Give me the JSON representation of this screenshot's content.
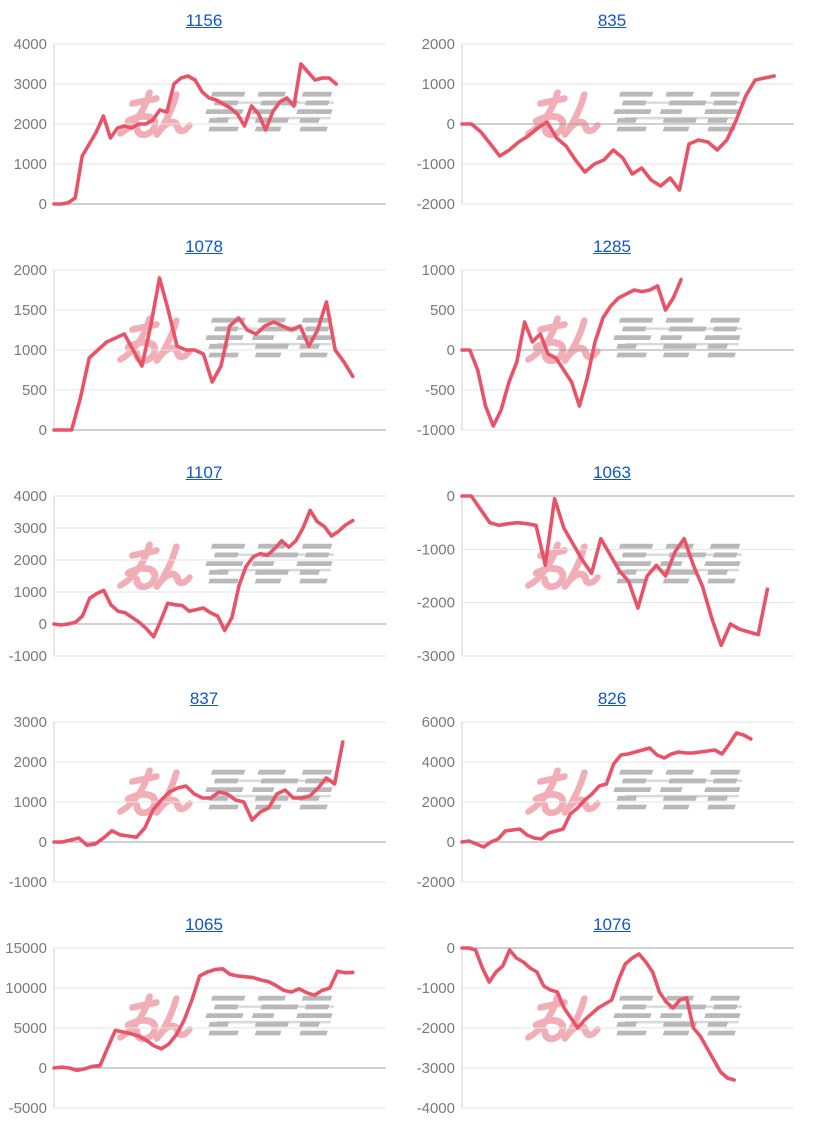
{
  "page": {
    "background": "#ffffff"
  },
  "style": {
    "line_color": "#e85368",
    "grid_color": "#e5e5e5",
    "zero_line_color": "#a0a0a0",
    "axis_line_color": "#d2d2d2",
    "tick_label_color": "#7a7a7a",
    "title_color": "#1155cc"
  },
  "watermark": {
    "text_pink": "みん",
    "text_gray": "レポ",
    "pink": "#f0a0aa",
    "gray": "#a8a8a8"
  },
  "chart_data": [
    {
      "type": "line",
      "title": "1156",
      "xlabel": "",
      "ylabel": "",
      "ylim": [
        0,
        4000
      ],
      "yticks": [
        0,
        1000,
        2000,
        3000,
        4000
      ],
      "grid": true,
      "legend": "none",
      "end_fraction": 0.85,
      "values": [
        0,
        0,
        30,
        150,
        1200,
        1500,
        1800,
        2200,
        1650,
        1900,
        1950,
        1900,
        2000,
        2000,
        2100,
        2350,
        2300,
        3000,
        3150,
        3200,
        3100,
        2800,
        2650,
        2600,
        2500,
        2400,
        2250,
        1950,
        2450,
        2250,
        1850,
        2300,
        2550,
        2650,
        2450,
        3500,
        3300,
        3100,
        3150,
        3150,
        3000
      ]
    },
    {
      "type": "line",
      "title": "835",
      "xlabel": "",
      "ylabel": "",
      "ylim": [
        -2000,
        2000
      ],
      "yticks": [
        -2000,
        -1000,
        0,
        1000,
        2000
      ],
      "grid": true,
      "legend": "none",
      "end_fraction": 0.94,
      "values": [
        0,
        0,
        -200,
        -500,
        -800,
        -650,
        -450,
        -300,
        -100,
        50,
        -350,
        -550,
        -900,
        -1200,
        -1000,
        -900,
        -650,
        -850,
        -1250,
        -1100,
        -1400,
        -1550,
        -1350,
        -1650,
        -500,
        -400,
        -450,
        -650,
        -400,
        100,
        700,
        1100,
        1150,
        1200
      ]
    },
    {
      "type": "line",
      "title": "1078",
      "xlabel": "",
      "ylabel": "",
      "ylim": [
        0,
        2000
      ],
      "yticks": [
        0,
        500,
        1000,
        1500,
        2000
      ],
      "grid": true,
      "legend": "none",
      "end_fraction": 0.9,
      "values": [
        0,
        0,
        0,
        400,
        900,
        1000,
        1100,
        1150,
        1200,
        1000,
        800,
        1300,
        1900,
        1500,
        1050,
        1000,
        1000,
        950,
        600,
        800,
        1300,
        1400,
        1250,
        1200,
        1300,
        1350,
        1300,
        1250,
        1300,
        1050,
        1250,
        1600,
        1000,
        850,
        670
      ]
    },
    {
      "type": "line",
      "title": "1285",
      "xlabel": "",
      "ylabel": "",
      "ylim": [
        -1000,
        1000
      ],
      "yticks": [
        -1000,
        -500,
        0,
        500,
        1000
      ],
      "grid": true,
      "legend": "none",
      "end_fraction": 0.66,
      "values": [
        0,
        0,
        -250,
        -700,
        -950,
        -750,
        -400,
        -150,
        350,
        100,
        200,
        -50,
        -100,
        -250,
        -400,
        -700,
        -350,
        100,
        400,
        550,
        650,
        700,
        750,
        730,
        750,
        800,
        500,
        650,
        880
      ]
    },
    {
      "type": "line",
      "title": "1107",
      "xlabel": "",
      "ylabel": "",
      "ylim": [
        -1000,
        4000
      ],
      "yticks": [
        -1000,
        0,
        1000,
        2000,
        3000,
        4000
      ],
      "grid": true,
      "legend": "none",
      "end_fraction": 0.9,
      "values": [
        0,
        -30,
        0,
        50,
        250,
        800,
        950,
        1050,
        600,
        400,
        350,
        200,
        50,
        -150,
        -400,
        100,
        650,
        600,
        580,
        400,
        450,
        500,
        350,
        250,
        -200,
        200,
        1200,
        1800,
        2100,
        2200,
        2150,
        2350,
        2600,
        2400,
        2600,
        3000,
        3550,
        3200,
        3050,
        2750,
        2900,
        3100,
        3230
      ]
    },
    {
      "type": "line",
      "title": "1063",
      "xlabel": "",
      "ylabel": "",
      "ylim": [
        -3000,
        0
      ],
      "yticks": [
        -3000,
        -2000,
        -1000,
        0
      ],
      "grid": true,
      "legend": "none",
      "end_fraction": 0.92,
      "values": [
        0,
        0,
        -250,
        -500,
        -550,
        -520,
        -500,
        -520,
        -550,
        -1300,
        -50,
        -600,
        -900,
        -1200,
        -1450,
        -800,
        -1100,
        -1400,
        -1600,
        -2100,
        -1500,
        -1300,
        -1500,
        -1050,
        -800,
        -1300,
        -1700,
        -2300,
        -2800,
        -2400,
        -2500,
        -2550,
        -2600,
        -1750
      ]
    },
    {
      "type": "line",
      "title": "837",
      "xlabel": "",
      "ylabel": "",
      "ylim": [
        -1000,
        3000
      ],
      "yticks": [
        -1000,
        0,
        1000,
        2000,
        3000
      ],
      "grid": true,
      "legend": "none",
      "end_fraction": 0.87,
      "values": [
        0,
        0,
        50,
        100,
        -80,
        -50,
        100,
        280,
        180,
        150,
        120,
        350,
        800,
        1050,
        1250,
        1350,
        1400,
        1200,
        1100,
        1100,
        1250,
        1200,
        1050,
        1000,
        550,
        750,
        850,
        1200,
        1300,
        1100,
        1100,
        1150,
        1350,
        1600,
        1450,
        2500
      ]
    },
    {
      "type": "line",
      "title": "826",
      "xlabel": "",
      "ylabel": "",
      "ylim": [
        -2000,
        6000
      ],
      "yticks": [
        -2000,
        0,
        2000,
        4000,
        6000
      ],
      "grid": true,
      "legend": "none",
      "end_fraction": 0.87,
      "values": [
        0,
        50,
        -100,
        -250,
        0,
        150,
        550,
        600,
        650,
        350,
        200,
        150,
        450,
        550,
        650,
        1400,
        1700,
        2100,
        2400,
        2800,
        2900,
        3900,
        4350,
        4400,
        4500,
        4600,
        4700,
        4350,
        4200,
        4400,
        4500,
        4450,
        4450,
        4500,
        4550,
        4600,
        4400,
        4900,
        5450,
        5350,
        5150
      ]
    },
    {
      "type": "line",
      "title": "1065",
      "xlabel": "",
      "ylabel": "",
      "ylim": [
        -5000,
        15000
      ],
      "yticks": [
        -5000,
        0,
        5000,
        10000,
        15000
      ],
      "grid": true,
      "legend": "none",
      "end_fraction": 0.9,
      "values": [
        0,
        100,
        0,
        -300,
        -100,
        200,
        300,
        2500,
        4700,
        4500,
        4300,
        4000,
        3500,
        2800,
        2400,
        3000,
        4200,
        6000,
        8500,
        11500,
        12000,
        12300,
        12400,
        11700,
        11500,
        11400,
        11300,
        11000,
        10800,
        10300,
        9700,
        9500,
        9900,
        9400,
        9100,
        9700,
        10000,
        12100,
        11900,
        11950
      ]
    },
    {
      "type": "line",
      "title": "1076",
      "xlabel": "",
      "ylabel": "",
      "ylim": [
        -4000,
        0
      ],
      "yticks": [
        -4000,
        -3000,
        -2000,
        -1000,
        0
      ],
      "grid": true,
      "legend": "none",
      "end_fraction": 0.82,
      "values": [
        0,
        0,
        -50,
        -500,
        -850,
        -600,
        -450,
        -50,
        -250,
        -350,
        -500,
        -600,
        -950,
        -1050,
        -1100,
        -1500,
        -1750,
        -2000,
        -1800,
        -1650,
        -1500,
        -1400,
        -1300,
        -800,
        -400,
        -250,
        -150,
        -350,
        -600,
        -1100,
        -1350,
        -1500,
        -1300,
        -1250,
        -2000,
        -2200,
        -2500,
        -2800,
        -3100,
        -3250,
        -3300
      ]
    }
  ]
}
